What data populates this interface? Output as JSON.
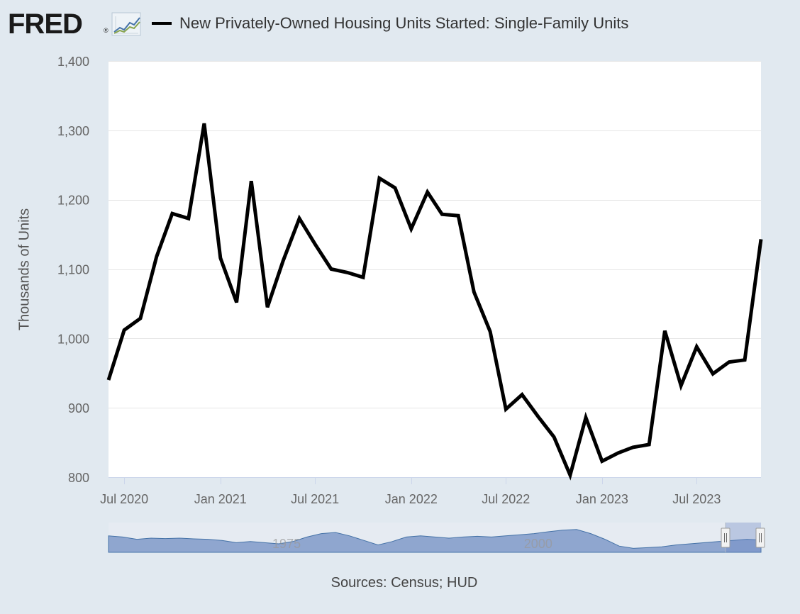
{
  "header": {
    "logo_text": "FRED",
    "logo_mark": "®",
    "logo_icon": "line-graph-icon",
    "title": "New Privately-Owned Housing Units Started: Single-Family Units"
  },
  "footer": {
    "sources": "Sources: Census; HUD"
  },
  "colors": {
    "background": "#e1e9f0",
    "plot_background": "#ffffff",
    "series_line": "#000000",
    "navigator_fill": "#8fa6cf",
    "navigator_line": "#4572a7",
    "gridline": "#e6e6e6"
  },
  "chart_data": {
    "type": "line",
    "title": "New Privately-Owned Housing Units Started: Single-Family Units",
    "ylabel": "Thousands of Units",
    "xlabel": "",
    "ylim": [
      800,
      1400
    ],
    "xlim": [
      "2020-06-01",
      "2023-11-01"
    ],
    "yticks": [
      800,
      900,
      1000,
      1100,
      1200,
      1300,
      1400
    ],
    "ytick_labels": [
      "800",
      "900",
      "1,000",
      "1,100",
      "1,200",
      "1,300",
      "1,400"
    ],
    "xticks": [
      "2020-07-01",
      "2021-01-01",
      "2021-07-01",
      "2022-01-01",
      "2022-07-01",
      "2023-01-01",
      "2023-07-01"
    ],
    "xtick_labels": [
      "Jul 2020",
      "Jan 2021",
      "Jul 2021",
      "Jan 2022",
      "Jul 2022",
      "Jan 2023",
      "Jul 2023"
    ],
    "grid": true,
    "legend": "top-left",
    "x": [
      "2020-06-01",
      "2020-07-01",
      "2020-08-01",
      "2020-09-01",
      "2020-10-01",
      "2020-11-01",
      "2020-12-01",
      "2021-01-01",
      "2021-02-01",
      "2021-03-01",
      "2021-04-01",
      "2021-05-01",
      "2021-06-01",
      "2021-07-01",
      "2021-08-01",
      "2021-09-01",
      "2021-10-01",
      "2021-11-01",
      "2021-12-01",
      "2022-01-01",
      "2022-02-01",
      "2022-03-01",
      "2022-04-01",
      "2022-05-01",
      "2022-06-01",
      "2022-07-01",
      "2022-08-01",
      "2022-09-01",
      "2022-10-01",
      "2022-11-01",
      "2022-12-01",
      "2023-01-01",
      "2023-02-01",
      "2023-03-01",
      "2023-04-01",
      "2023-05-01",
      "2023-06-01",
      "2023-07-01",
      "2023-08-01",
      "2023-09-01",
      "2023-10-01",
      "2023-11-01"
    ],
    "series": [
      {
        "values": [
          940,
          1012,
          1029,
          1118,
          1180,
          1173,
          1310,
          1116,
          1052,
          1227,
          1045,
          1112,
          1173,
          1136,
          1100,
          1095,
          1088,
          1231,
          1217,
          1158,
          1211,
          1179,
          1177,
          1067,
          1010,
          898,
          919,
          887,
          858,
          803,
          886,
          823,
          835,
          843,
          847,
          1011,
          932,
          988,
          949,
          966,
          969,
          1143
        ]
      }
    ],
    "navigator": {
      "type": "area",
      "axis_labels": [
        "1975",
        "2000"
      ],
      "range": [
        "1959-01-01",
        "2023-11-01"
      ],
      "selected": [
        "2020-06-01",
        "2023-11-01"
      ]
    }
  }
}
